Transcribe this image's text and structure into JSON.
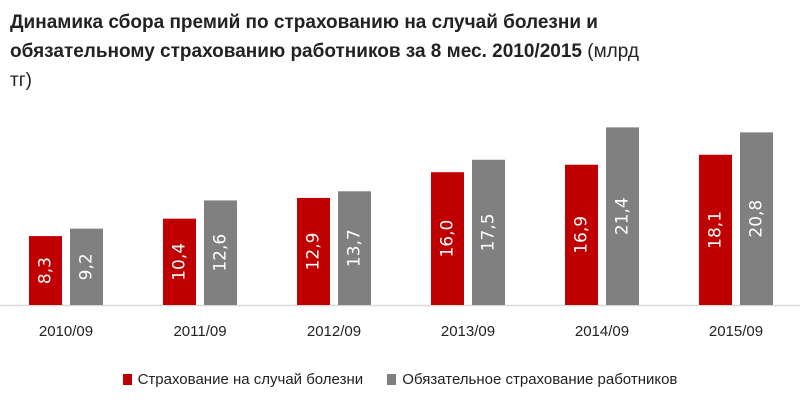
{
  "chart_data": {
    "type": "bar",
    "title": "Динамика сбора премий по страхованию на случай болезни и обязательному страхованию работников за 8 мес. 2010/2015",
    "title_unit": "(млрд тг)",
    "categories": [
      "2010/09",
      "2011/09",
      "2012/09",
      "2013/09",
      "2014/09",
      "2015/09"
    ],
    "series": [
      {
        "name": "Страхование на случай болезни",
        "color": "#c00000",
        "values": [
          8.3,
          10.4,
          12.9,
          16.0,
          16.9,
          18.1
        ],
        "labels": [
          "8,3",
          "10,4",
          "12,9",
          "16,0",
          "16,9",
          "18,1"
        ]
      },
      {
        "name": "Обязательное страхование работников",
        "color": "#808080",
        "values": [
          9.2,
          12.6,
          13.7,
          17.5,
          21.4,
          20.8
        ],
        "labels": [
          "9,2",
          "12,6",
          "13,7",
          "17,5",
          "21,4",
          "20,8"
        ]
      }
    ],
    "ylim": [
      0,
      22
    ],
    "grid": false,
    "data_labels": "inside-rotated",
    "legend_position": "bottom"
  }
}
